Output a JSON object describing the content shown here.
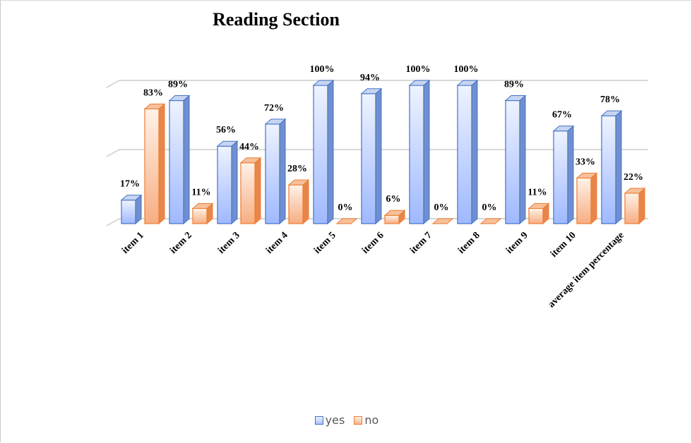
{
  "chart_data": {
    "type": "bar",
    "title": "Reading Section",
    "categories": [
      "item 1",
      "item 2",
      "item 3",
      "item  4",
      "item 5",
      "item 6",
      "item 7",
      "item 8",
      "item 9",
      "item 10",
      "average item percentage"
    ],
    "series": [
      {
        "name": "yes",
        "values": [
          17,
          89,
          56,
          72,
          100,
          94,
          100,
          100,
          89,
          67,
          78
        ],
        "labels": [
          "17%",
          "89%",
          "56%",
          "72%",
          "100%",
          "94%",
          "100%",
          "100%",
          "89%",
          "67%",
          "78%"
        ],
        "color": "#4472c4"
      },
      {
        "name": "no",
        "values": [
          83,
          11,
          44,
          28,
          0,
          6,
          0,
          0,
          11,
          33,
          22
        ],
        "labels": [
          "83%",
          "11%",
          "44%",
          "28%",
          "0%",
          "6%",
          "0%",
          "0%",
          "11%",
          "33%",
          "22%"
        ],
        "color": "#ed7d31"
      }
    ],
    "ylim": [
      0,
      100
    ],
    "grid": true,
    "legend_position": "bottom"
  }
}
